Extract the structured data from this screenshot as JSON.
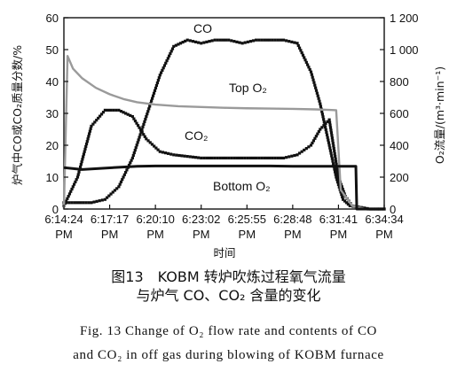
{
  "chart_data": {
    "type": "line",
    "xlabel": "时间",
    "ylabel_left": "炉气中CO或CO₂质量分数/%",
    "ylabel_right": "O₂流量/(m³·min⁻¹)",
    "x_ticks": [
      "6:14:24 PM",
      "6:17:17 PM",
      "6:20:10 PM",
      "6:23:02 PM",
      "6:25:55 PM",
      "6:28:48 PM",
      "6:31:41 PM",
      "6:34:34 PM"
    ],
    "xlim": [
      0,
      7
    ],
    "ylim_left": [
      0,
      60
    ],
    "ylim_right": [
      0,
      1200
    ],
    "left_ticks": [
      "0",
      "10",
      "20",
      "30",
      "40",
      "50",
      "60"
    ],
    "right_ticks": [
      "0",
      "200",
      "400",
      "600",
      "800",
      "1 000",
      "1 200"
    ],
    "grid": false,
    "series": [
      {
        "name": "CO",
        "axis": "left",
        "style": "black-dots",
        "x": [
          0,
          0.3,
          0.6,
          0.9,
          1.2,
          1.5,
          1.8,
          2.1,
          2.4,
          2.7,
          3.0,
          3.3,
          3.6,
          3.9,
          4.2,
          4.5,
          4.8,
          5.1,
          5.4,
          5.6,
          5.8,
          5.95,
          6.1,
          6.25,
          6.45,
          6.65,
          6.85,
          7.0
        ],
        "y": [
          2,
          2,
          2,
          3,
          7,
          16,
          29,
          42,
          51,
          53,
          52,
          53,
          53,
          52,
          53,
          53,
          53,
          52,
          43,
          33,
          20,
          10,
          3,
          1,
          0.5,
          0,
          0,
          0
        ]
      },
      {
        "name": "CO2",
        "axis": "left",
        "style": "black-dots",
        "x": [
          0,
          0.3,
          0.6,
          0.9,
          1.2,
          1.5,
          1.8,
          2.1,
          2.4,
          2.7,
          3.0,
          3.3,
          3.6,
          3.9,
          4.2,
          4.5,
          4.8,
          5.1,
          5.4,
          5.6,
          5.8,
          6.0,
          6.15,
          6.3,
          6.5,
          6.7,
          7.0
        ],
        "y": [
          1,
          10,
          26,
          31,
          31,
          29,
          22,
          18,
          17,
          16.5,
          16,
          16,
          16,
          16,
          16,
          16,
          16,
          17,
          20,
          25,
          28,
          10,
          4,
          1,
          0.5,
          0,
          0
        ]
      },
      {
        "name": "Top O2",
        "axis": "right",
        "style": "gray-line",
        "x": [
          0,
          0.08,
          0.2,
          0.4,
          0.7,
          1.0,
          1.3,
          1.6,
          2.0,
          2.5,
          3.0,
          3.5,
          4.0,
          4.5,
          5.0,
          5.5,
          5.8,
          5.95,
          6.05,
          6.3,
          6.6,
          7.0
        ],
        "y": [
          0,
          960,
          880,
          820,
          760,
          720,
          690,
          670,
          655,
          645,
          640,
          635,
          632,
          630,
          628,
          625,
          622,
          620,
          120,
          20,
          0,
          0
        ]
      },
      {
        "name": "Bottom O2",
        "axis": "right",
        "style": "black-line",
        "x": [
          0,
          0.4,
          0.8,
          1.2,
          1.6,
          2.0,
          2.5,
          3.0,
          3.5,
          4.0,
          4.5,
          5.0,
          5.5,
          6.0,
          6.38,
          6.4,
          6.7,
          7.0
        ],
        "y": [
          260,
          248,
          255,
          262,
          268,
          270,
          270,
          270,
          270,
          270,
          270,
          268,
          268,
          268,
          268,
          0,
          0,
          0
        ]
      }
    ],
    "series_labels": [
      "CO",
      "CO₂",
      "Top O₂",
      "Bottom O₂"
    ]
  },
  "caption": {
    "cn_line1": "图13　KOBM 转炉吹炼过程氧气流量",
    "cn_line2": "与炉气 CO、CO₂ 含量的变化",
    "en_line1": "Fig. 13  Change of O₂ flow rate and contents of CO",
    "en_line2": "and CO₂ in off gas during blowing of KOBM furnace"
  },
  "colors": {
    "dark": "#111111",
    "gray_series": "#9a9a9a",
    "background": "#ffffff"
  }
}
